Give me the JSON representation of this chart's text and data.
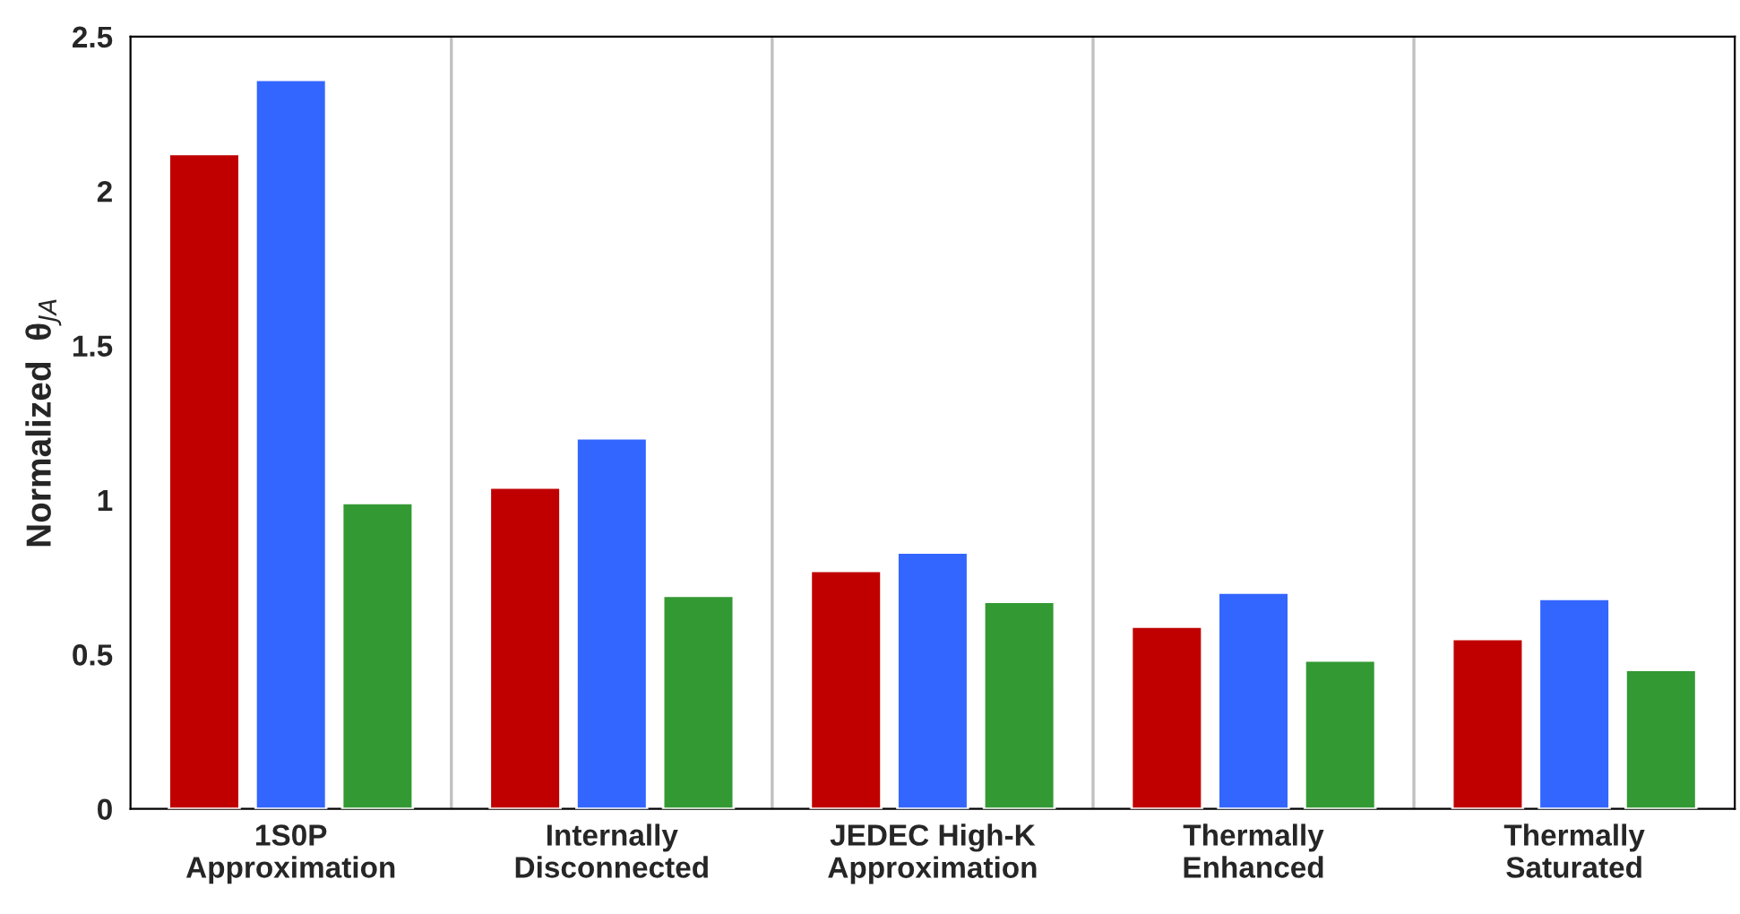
{
  "chart_data": {
    "type": "bar",
    "ylabel": "Normalized  θ$_{JA}$",
    "categories": [
      "1S0P\nApproximation",
      "Internally\nDisconnected",
      "JEDEC High-K\nApproximation",
      "Thermally\nEnhanced",
      "Thermally\nSaturated"
    ],
    "series": [
      {
        "color": "#c00000",
        "values": [
          2.12,
          1.04,
          0.77,
          0.59,
          0.55
        ]
      },
      {
        "color": "#3366ff",
        "values": [
          2.36,
          1.2,
          0.83,
          0.7,
          0.68
        ]
      },
      {
        "color": "#339933",
        "values": [
          0.99,
          0.69,
          0.67,
          0.48,
          0.45
        ]
      }
    ],
    "ylim": [
      0,
      2.5
    ],
    "yticks": [
      0,
      0.5,
      1,
      1.5,
      2,
      2.5
    ],
    "grid": "x"
  }
}
